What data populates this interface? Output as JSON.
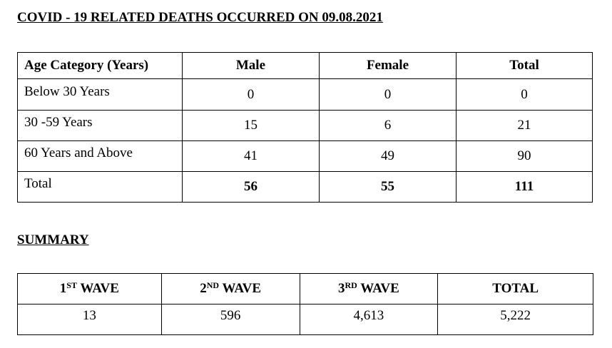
{
  "title": "COVID - 19 RELATED DEATHS OCCURRED ON 09.08.2021",
  "deaths_table": {
    "headers": [
      "Age Category (Years)",
      "Male",
      "Female",
      "Total"
    ],
    "rows": [
      {
        "label": "Below 30 Years",
        "male": "0",
        "female": "0",
        "total": "0"
      },
      {
        "label": "30 -59 Years",
        "male": "15",
        "female": "6",
        "total": "21"
      },
      {
        "label": "60 Years and Above",
        "male": "41",
        "female": "49",
        "total": "90"
      },
      {
        "label": "Total",
        "male": "56",
        "female": "55",
        "total": "111"
      }
    ]
  },
  "summary": {
    "heading": "SUMMARY",
    "headers": [
      {
        "num": "1",
        "sup": "ST",
        "text": " WAVE"
      },
      {
        "num": "2",
        "sup": "ND",
        "text": " WAVE"
      },
      {
        "num": "3",
        "sup": "RD",
        "text": " WAVE"
      },
      {
        "num": "",
        "sup": "",
        "text": "TOTAL"
      }
    ],
    "values": [
      "13",
      "596",
      "4,613",
      "5,222"
    ]
  }
}
